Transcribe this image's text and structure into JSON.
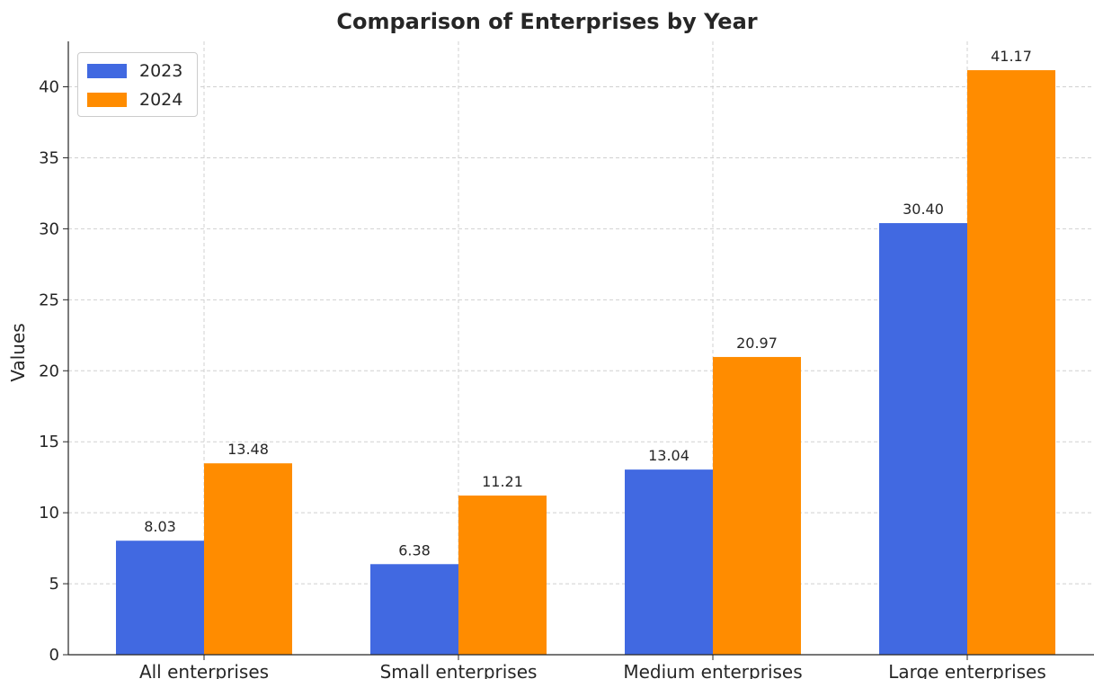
{
  "chart_data": {
    "type": "bar",
    "title": "Comparison of Enterprises by Year",
    "xlabel": "",
    "ylabel": "Values",
    "categories": [
      "All enterprises",
      "Small enterprises",
      "Medium enterprises",
      "Large enterprises"
    ],
    "series": [
      {
        "name": "2023",
        "color": "#4169E1",
        "values": [
          8.03,
          6.38,
          13.04,
          30.4
        ]
      },
      {
        "name": "2024",
        "color": "#FF8C00",
        "values": [
          13.48,
          11.21,
          20.97,
          41.17
        ]
      }
    ],
    "data_labels": [
      [
        "8.03",
        "6.38",
        "13.04",
        "30.40"
      ],
      [
        "13.48",
        "11.21",
        "20.97",
        "41.17"
      ]
    ],
    "yticks": [
      0,
      5,
      10,
      15,
      20,
      25,
      30,
      35,
      40
    ],
    "ylim": [
      0,
      43.2
    ],
    "grid": true,
    "legend_position": "top-left"
  }
}
